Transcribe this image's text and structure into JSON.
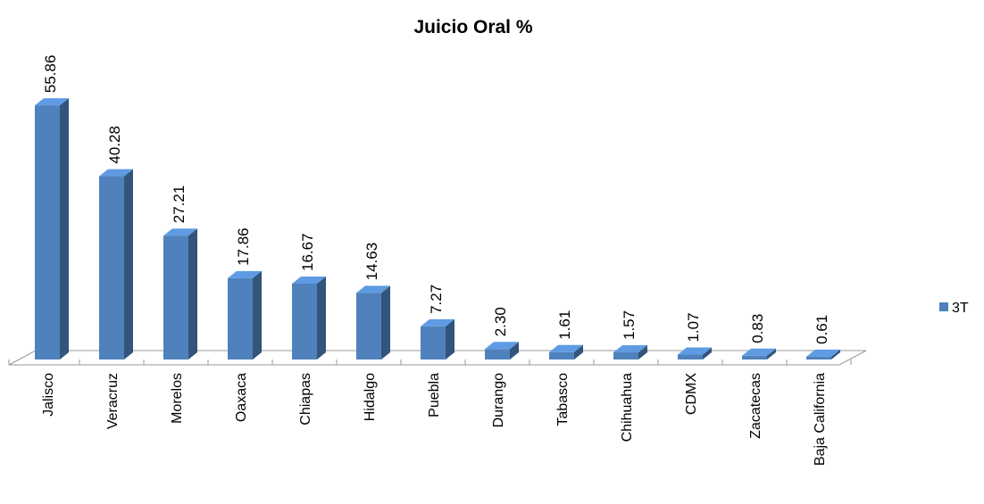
{
  "chart_data": {
    "type": "bar3d",
    "title": "Juicio Oral %",
    "categories": [
      "Jalisco",
      "Veracruz",
      "Morelos",
      "Oaxaca",
      "Chiapas",
      "Hidalgo",
      "Puebla",
      "Durango",
      "Tabasco",
      "Chihuahua",
      "CDMX",
      "Zacatecas",
      "Baja California"
    ],
    "series": [
      {
        "name": "3T",
        "color": "#4f81bd",
        "values": [
          55.86,
          40.28,
          27.21,
          17.86,
          16.67,
          14.63,
          7.27,
          2.3,
          1.61,
          1.57,
          1.07,
          0.83,
          0.61
        ],
        "value_labels": [
          "55.86",
          "40.28",
          "27.21",
          "17.86",
          "16.67",
          "14.63",
          "7.27",
          "2.30",
          "1.61",
          "1.57",
          "1.07",
          "0.83",
          "0.61"
        ]
      }
    ],
    "legend": "right"
  }
}
